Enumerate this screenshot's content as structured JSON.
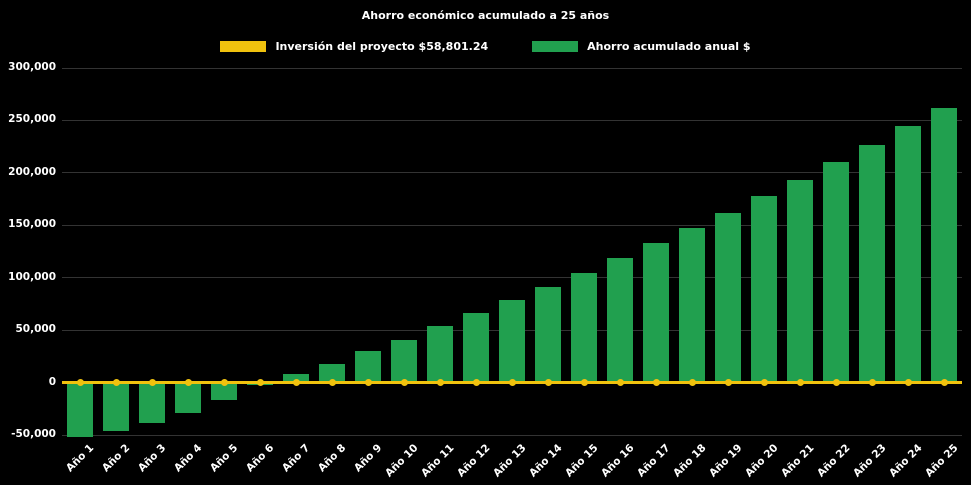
{
  "chart_data": {
    "type": "bar",
    "title": "Ahorro económico acumulado a 25 años",
    "xlabel": "",
    "ylabel": "",
    "background": "#000000",
    "text_color": "#ffffff",
    "grid_color": "#333333",
    "grid": true,
    "legend_position": "top",
    "ylim": [
      -50000,
      300000
    ],
    "ytick_step": 50000,
    "ytick_labels": [
      "-50,000",
      "0",
      "50,000",
      "100,000",
      "150,000",
      "200,000",
      "250,000",
      "300,000"
    ],
    "categories": [
      "Año 1",
      "Año 2",
      "Año 3",
      "Año 4",
      "Año 5",
      "Año 6",
      "Año 7",
      "Año 8",
      "Año 9",
      "Año 10",
      "Año 11",
      "Año 12",
      "Año 13",
      "Año 14",
      "Año 15",
      "Año 16",
      "Año 17",
      "Año 18",
      "Año 19",
      "Año 20",
      "Año 21",
      "Año 22",
      "Año 23",
      "Año 24",
      "Año 25"
    ],
    "series": [
      {
        "name": "Inversión del proyecto $58,801.24",
        "type": "line",
        "color": "#f0c20e",
        "values": [
          0,
          0,
          0,
          0,
          0,
          0,
          0,
          0,
          0,
          0,
          0,
          0,
          0,
          0,
          0,
          0,
          0,
          0,
          0,
          0,
          0,
          0,
          0,
          0,
          0
        ]
      },
      {
        "name": "Ahorro acumulado anual $",
        "type": "bar",
        "color": "#21a04f",
        "values": [
          -52000,
          -46000,
          -38500,
          -29500,
          -16500,
          -2500,
          8500,
          18000,
          30000,
          41000,
          53500,
          66000,
          79000,
          91500,
          104500,
          118500,
          133000,
          147500,
          162000,
          178000,
          193500,
          210000,
          227000,
          244500,
          261500
        ]
      }
    ]
  }
}
